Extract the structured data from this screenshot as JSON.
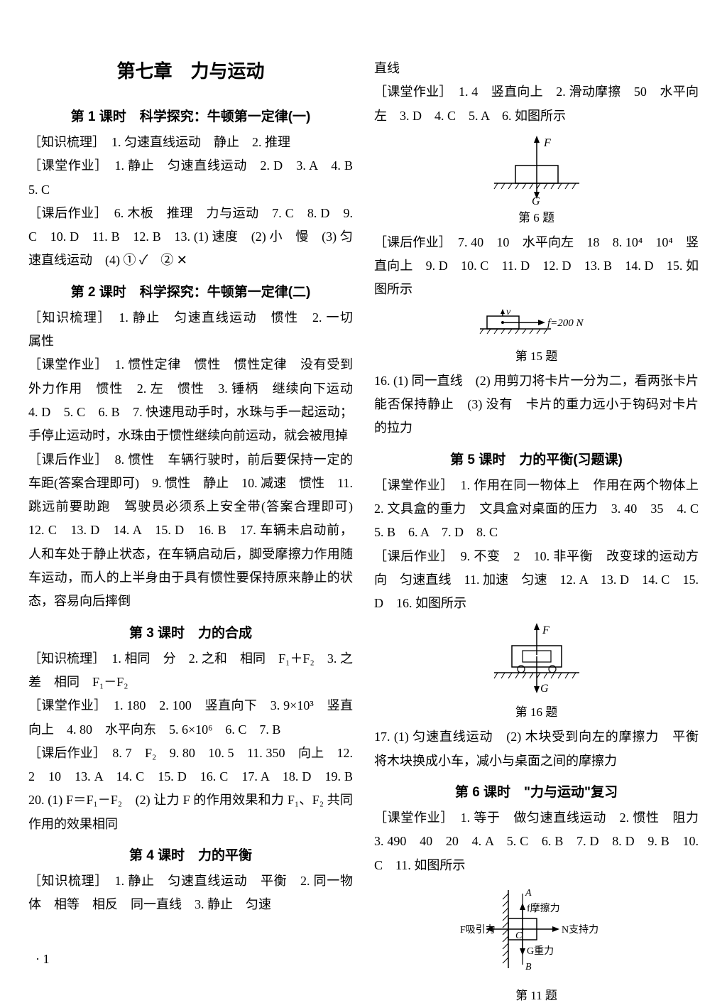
{
  "chapterTitle": "第七章　力与运动",
  "pageNumber": "· 1",
  "colors": {
    "text": "#000000",
    "background": "#ffffff",
    "line": "#000000"
  },
  "leftColumn": {
    "lesson1": {
      "title": "第 1 课时　科学探究：牛顿第一定律(一)",
      "body": "［知识梳理］　1. 匀速直线运动　静止　2. 推理\n［课堂作业］　1. 静止　匀速直线运动　2. D　3. A　4. B　5. C\n［课后作业］　6. 木板　推理　力与运动　7. C　8. D　9. C　10. D　11. B　12. B　13. (1) 速度　(2) 小　慢　(3) 匀速直线运动　(4) ① ✓　② ✕"
    },
    "lesson2": {
      "title": "第 2 课时　科学探究：牛顿第一定律(二)",
      "body": "［知识梳理］　1. 静止　匀速直线运动　惯性　2. 一切　属性\n［课堂作业］　1. 惯性定律　惯性　惯性定律　没有受到外力作用　惯性　2. 左　惯性　3. 锤柄　继续向下运动　4. D　5. C　6. B　7. 快速甩动手时，水珠与手一起运动；手停止运动时，水珠由于惯性继续向前运动，就会被甩掉\n［课后作业］　8. 惯性　车辆行驶时，前后要保持一定的车距(答案合理即可)　9. 惯性　静止　10. 减速　惯性　11. 跳远前要助跑　驾驶员必须系上安全带(答案合理即可)　12. C　13. D　14. A　15. D　16. B　17. 车辆未启动前，人和车处于静止状态，在车辆启动后，脚受摩擦力作用随车运动，而人的上半身由于具有惯性要保持原来静止的状态，容易向后摔倒"
    },
    "lesson3": {
      "title": "第 3 课时　力的合成",
      "body": "［知识梳理］　1. 相同　分　2. 之和　相同　F₁＋F₂　3. 之差　相同　F₁－F₂\n［课堂作业］　1. 180　2. 100　竖直向下　3. 9×10³　竖直向上　4. 80　水平向东　5. 6×10⁶　6. C　7. B\n［课后作业］　8. 7　F₂　9. 80　10. 5　11. 350　向上　12. 2　10　13. A　14. C　15. D　16. C　17. A　18. D　19. B　20. (1) F＝F₁－F₂　(2) 让力 F 的作用效果和力 F₁、F₂ 共同作用的效果相同"
    },
    "lesson4": {
      "title": "第 4 课时　力的平衡",
      "body": "［知识梳理］　1. 静止　匀速直线运动　平衡　2. 同一物体　相等　相反　同一直线　3. 静止　匀速"
    }
  },
  "rightColumn": {
    "topLine": "直线",
    "lesson4cont": {
      "body1": "［课堂作业］　1. 4　竖直向上　2. 滑动摩擦　50　水平向左　3. D　4. C　5. A　6. 如图所示",
      "fig6caption": "第 6 题",
      "body2": "［课后作业］　7. 40　10　水平向左　18　8. 10⁴　10⁴　竖直向上　9. D　10. C　11. D　12. D　13. B　14. D　15. 如图所示",
      "fig15caption": "第 15 题",
      "fig15label": "f=200 N",
      "body3": "16. (1) 同一直线　(2) 用剪刀将卡片一分为二，看两张卡片能否保持静止　(3) 没有　卡片的重力远小于钩码对卡片的拉力"
    },
    "lesson5": {
      "title": "第 5 课时　力的平衡(习题课)",
      "body1": "［课堂作业］　1. 作用在同一物体上　作用在两个物体上　2. 文具盒的重力　文具盒对桌面的压力　3. 40　35　4. C　5. B　6. A　7. D　8. C\n［课后作业］　9. 不变　2　10. 非平衡　改变球的运动方向　匀速直线　11. 加速　匀速　12. A　13. D　14. C　15. D　16. 如图所示",
      "fig16caption": "第 16 题",
      "body2": "17. (1) 匀速直线运动　(2) 木块受到向左的摩擦力　平衡　将木块换成小车，减小与桌面之间的摩擦力"
    },
    "lesson6": {
      "title": "第 6 课时　\"力与运动\"复习",
      "body": "［课堂作业］　1. 等于　做匀速直线运动　2. 惯性　阻力　3. 490　40　20　4. A　5. C　6. B　7. D　8. D　9. B　10. C　11. 如图所示",
      "fig11caption": "第 11 题",
      "fig11labels": {
        "A": "A",
        "B": "B",
        "C": "C",
        "f": "f摩擦力",
        "F": "F吸引力",
        "N": "N支持力",
        "G": "G重力"
      }
    }
  },
  "figures": {
    "fig6": {
      "F": "F",
      "G": "G"
    },
    "fig15": {
      "v": "v"
    },
    "fig16": {
      "F": "F",
      "G": "G"
    }
  }
}
